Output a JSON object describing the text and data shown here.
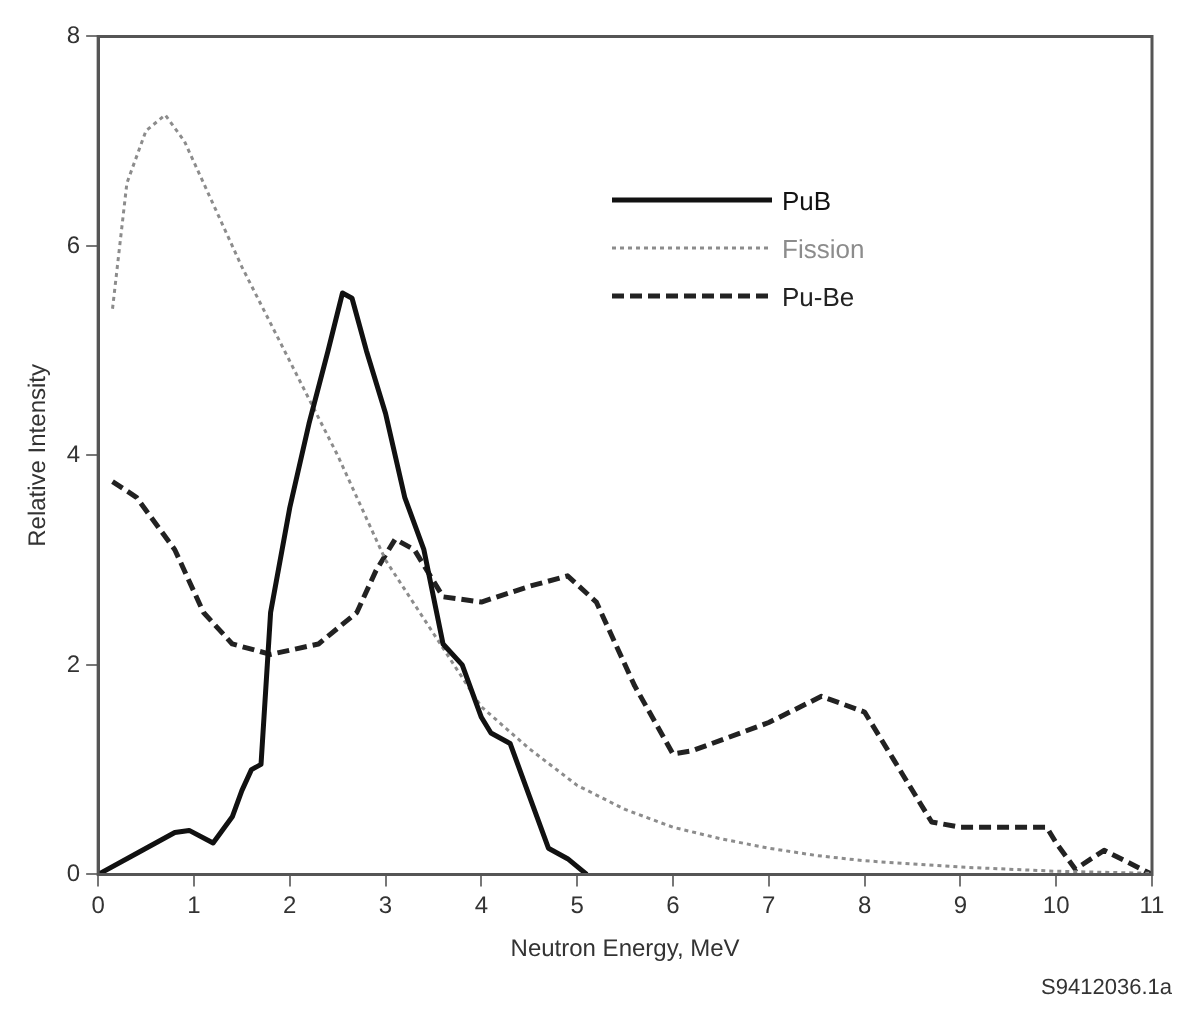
{
  "chart_data": {
    "type": "line",
    "xlabel": "Neutron Energy, MeV",
    "ylabel": "Relative Intensity",
    "xlim": [
      0,
      11
    ],
    "xticks": [
      0,
      1,
      2,
      3,
      4,
      5,
      6,
      7,
      8,
      9,
      10,
      11
    ],
    "ylim": [
      0,
      8
    ],
    "yticks": [
      0,
      2,
      4,
      6,
      8
    ],
    "grid": false,
    "legend": "top right",
    "marker": "none",
    "annotations": [
      "S9412036.1a"
    ],
    "series": [
      {
        "name": "PuB",
        "color": "#111111",
        "line_style": "solid",
        "x": [
          0,
          0.4,
          0.8,
          0.95,
          1.2,
          1.4,
          1.5,
          1.6,
          1.7,
          1.8,
          2.0,
          2.2,
          2.4,
          2.55,
          2.65,
          2.8,
          3.0,
          3.2,
          3.4,
          3.6,
          3.8,
          4.0,
          4.1,
          4.3,
          4.5,
          4.7,
          4.9,
          5.1
        ],
        "values": [
          0,
          0.2,
          0.4,
          0.42,
          0.3,
          0.55,
          0.8,
          1.0,
          1.05,
          2.5,
          3.5,
          4.3,
          5.0,
          5.55,
          5.5,
          5.0,
          4.4,
          3.6,
          3.1,
          2.2,
          2.0,
          1.5,
          1.35,
          1.25,
          0.75,
          0.25,
          0.15,
          0
        ]
      },
      {
        "name": "Fission",
        "color": "#8c8c8c",
        "line_style": "dotted",
        "x": [
          0.15,
          0.3,
          0.5,
          0.7,
          0.9,
          1.2,
          1.5,
          2.0,
          2.5,
          3.0,
          3.5,
          4.0,
          4.5,
          5.0,
          5.5,
          6.0,
          6.5,
          7.0,
          7.5,
          8.0,
          9.0,
          10.0,
          11.0
        ],
        "values": [
          5.4,
          6.6,
          7.1,
          7.25,
          7.0,
          6.4,
          5.8,
          4.9,
          4.0,
          3.0,
          2.3,
          1.6,
          1.2,
          0.85,
          0.62,
          0.45,
          0.34,
          0.25,
          0.18,
          0.13,
          0.07,
          0.03,
          0.01
        ]
      },
      {
        "name": "Pu-Be",
        "color": "#222222",
        "line_style": "dashed",
        "x": [
          0.15,
          0.4,
          0.8,
          1.1,
          1.4,
          1.8,
          2.3,
          2.7,
          2.9,
          3.1,
          3.3,
          3.6,
          4.0,
          4.5,
          4.9,
          5.2,
          5.6,
          6.0,
          6.2,
          7.0,
          7.55,
          8.0,
          8.3,
          8.7,
          9.0,
          9.9,
          10.0,
          10.2,
          10.5,
          11.0
        ],
        "values": [
          3.75,
          3.6,
          3.1,
          2.5,
          2.2,
          2.1,
          2.2,
          2.5,
          2.9,
          3.2,
          3.1,
          2.65,
          2.6,
          2.75,
          2.85,
          2.6,
          1.8,
          1.15,
          1.18,
          1.45,
          1.7,
          1.55,
          1.1,
          0.5,
          0.45,
          0.45,
          0.3,
          0.05,
          0.23,
          0
        ]
      }
    ]
  }
}
